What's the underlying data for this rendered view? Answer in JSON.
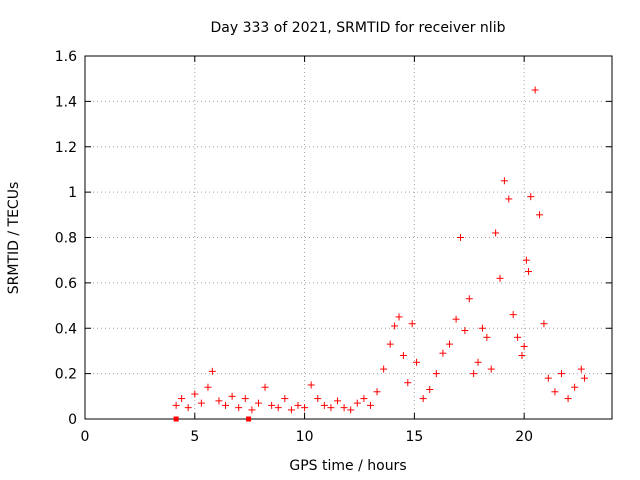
{
  "chart_data": {
    "type": "scatter",
    "title": "Day 333 of 2021, SRMTID for receiver nlib",
    "xlabel": "GPS time / hours",
    "ylabel": "SRMTID / TECUs",
    "xlim": [
      0,
      24
    ],
    "ylim": [
      0,
      1.6
    ],
    "grid": true,
    "marker": "plus",
    "color": "#ff0000",
    "x_ticks": [
      0,
      5,
      10,
      15,
      20
    ],
    "x_tick_labels": [
      "0",
      "5",
      "10",
      "15",
      "20"
    ],
    "y_ticks": [
      0,
      0.2,
      0.4,
      0.6,
      0.8,
      1.0,
      1.2,
      1.4,
      1.6
    ],
    "y_tick_labels": [
      "0",
      "0.2",
      "0.4",
      "0.6",
      "0.8",
      "1",
      "1.2",
      "1.4",
      "1.6"
    ],
    "series": [
      {
        "name": "SRMTID",
        "x": [
          4.15,
          4.4,
          4.7,
          5.0,
          5.3,
          5.6,
          5.8,
          6.1,
          6.4,
          6.7,
          7.0,
          7.3,
          7.6,
          7.9,
          8.2,
          8.5,
          8.8,
          9.1,
          9.4,
          9.7,
          10.0,
          10.3,
          10.6,
          10.9,
          11.2,
          11.5,
          11.8,
          12.1,
          12.4,
          12.7,
          13.0,
          13.3,
          13.6,
          13.9,
          14.1,
          14.3,
          14.5,
          14.7,
          14.9,
          15.1,
          15.4,
          15.7,
          16.0,
          16.3,
          16.6,
          16.9,
          17.1,
          17.3,
          17.5,
          17.7,
          17.9,
          18.1,
          18.3,
          18.5,
          18.7,
          18.9,
          19.1,
          19.3,
          19.5,
          19.7,
          19.9,
          20.0,
          20.1,
          20.2,
          20.3,
          20.5,
          20.7,
          20.9,
          21.1,
          21.4,
          21.7,
          22.0,
          22.3,
          22.6,
          22.75
        ],
        "y": [
          0.06,
          0.09,
          0.05,
          0.11,
          0.07,
          0.14,
          0.21,
          0.08,
          0.06,
          0.1,
          0.05,
          0.09,
          0.04,
          0.07,
          0.14,
          0.06,
          0.05,
          0.09,
          0.04,
          0.06,
          0.05,
          0.15,
          0.09,
          0.06,
          0.05,
          0.08,
          0.05,
          0.04,
          0.07,
          0.09,
          0.06,
          0.12,
          0.22,
          0.33,
          0.41,
          0.45,
          0.28,
          0.16,
          0.42,
          0.25,
          0.09,
          0.13,
          0.2,
          0.29,
          0.33,
          0.44,
          0.8,
          0.39,
          0.53,
          0.2,
          0.25,
          0.4,
          0.36,
          0.22,
          0.82,
          0.62,
          1.05,
          0.97,
          0.46,
          0.36,
          0.28,
          0.32,
          0.7,
          0.65,
          0.98,
          1.45,
          0.9,
          0.42,
          0.18,
          0.12,
          0.2,
          0.09,
          0.14,
          0.22,
          0.18
        ]
      }
    ],
    "square_markers": {
      "x": [
        4.15,
        7.45
      ],
      "y": [
        0,
        0
      ]
    }
  }
}
